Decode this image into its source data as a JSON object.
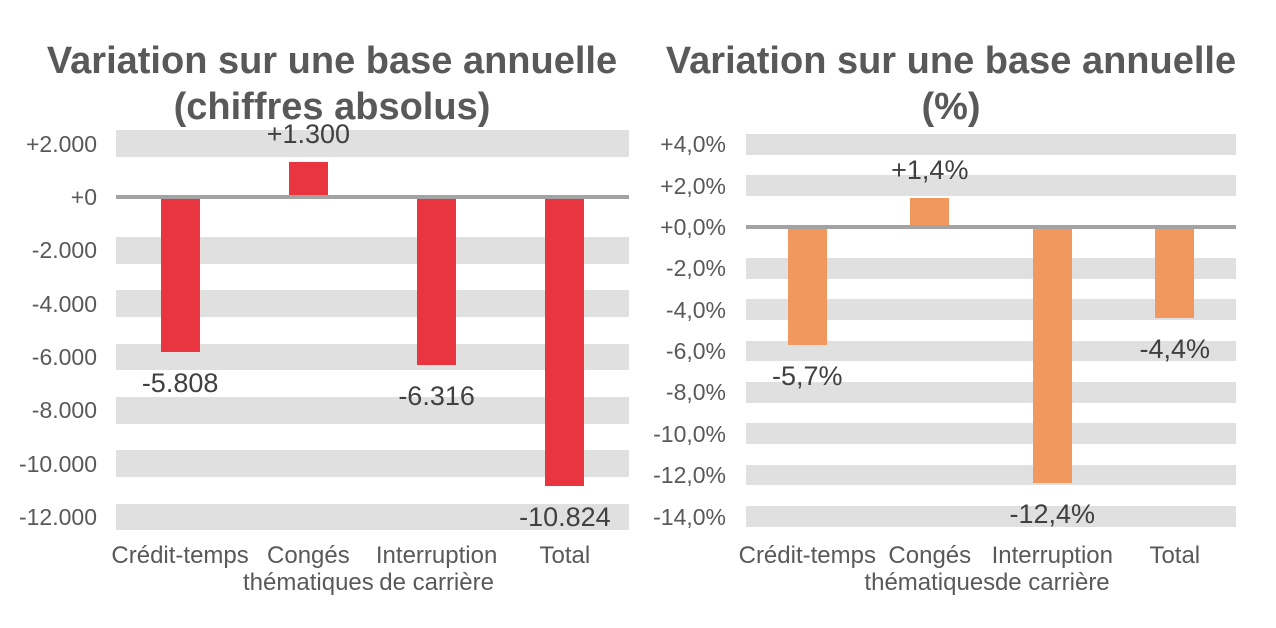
{
  "page": {
    "background_color": "#ffffff"
  },
  "chart_data": [
    {
      "type": "bar",
      "title": "Variation sur une base annuelle (chiffres absolus)",
      "title_lines": [
        "Variation sur une base annuelle",
        "(chiffres absolus)"
      ],
      "categories": [
        "Crédit-temps",
        "Congés thématiques",
        "Interruption de carrière",
        "Total"
      ],
      "category_lines": [
        [
          "Crédit-temps"
        ],
        [
          "Congés",
          "thématiques"
        ],
        [
          "Interruption",
          "de carrière"
        ],
        [
          "Total"
        ]
      ],
      "values": [
        -5808,
        1300,
        -6316,
        -10824
      ],
      "data_labels": [
        "-5.808",
        "+1.300",
        "-6.316",
        "-10.824"
      ],
      "bar_color": "#e8353f",
      "band_color": "#e0e0e0",
      "zero_line_color": "#a3a3a3",
      "text_color": "#595959",
      "data_label_color": "#404040",
      "xlabel": "",
      "ylabel": "",
      "ylim": [
        -12500,
        2500
      ],
      "y_tick_step": 2000,
      "grid": "horizontal-gray-bands",
      "legend": "none",
      "y_ticks": [
        {
          "value": 2000,
          "label": "+2.000"
        },
        {
          "value": 0,
          "label": "+0"
        },
        {
          "value": -2000,
          "label": "-2.000"
        },
        {
          "value": -4000,
          "label": "-4.000"
        },
        {
          "value": -6000,
          "label": "-6.000"
        },
        {
          "value": -8000,
          "label": "-8.000"
        },
        {
          "value": -10000,
          "label": "-10.000"
        },
        {
          "value": -12000,
          "label": "-12.000"
        }
      ]
    },
    {
      "type": "bar",
      "title": "Variation sur une base annuelle (%)",
      "title_lines": [
        "Variation sur une base annuelle",
        "(%)"
      ],
      "categories": [
        "Crédit-temps",
        "Congés thématiques",
        "Interruption de carrière",
        "Total"
      ],
      "category_lines": [
        [
          "Crédit-temps"
        ],
        [
          "Congés",
          "thématiques"
        ],
        [
          "Interruption",
          "de carrière"
        ],
        [
          "Total"
        ]
      ],
      "values": [
        -5.7,
        1.4,
        -12.4,
        -4.4
      ],
      "data_labels": [
        "-5,7%",
        "+1,4%",
        "-12,4%",
        "-4,4%"
      ],
      "bar_color": "#f0985e",
      "band_color": "#e0e0e0",
      "zero_line_color": "#a3a3a3",
      "text_color": "#595959",
      "data_label_color": "#404040",
      "xlabel": "",
      "ylabel": "",
      "ylim": [
        -14.5,
        4.5
      ],
      "y_tick_step": 2,
      "grid": "horizontal-gray-bands",
      "legend": "none",
      "y_ticks": [
        {
          "value": 4,
          "label": "+4,0%"
        },
        {
          "value": 2,
          "label": "+2,0%"
        },
        {
          "value": 0,
          "label": "+0,0%"
        },
        {
          "value": -2,
          "label": "-2,0%"
        },
        {
          "value": -4,
          "label": "-4,0%"
        },
        {
          "value": -6,
          "label": "-6,0%"
        },
        {
          "value": -8,
          "label": "-8,0%"
        },
        {
          "value": -10,
          "label": "-10,0%"
        },
        {
          "value": -12,
          "label": "-12,0%"
        },
        {
          "value": -14,
          "label": "-14,0%"
        }
      ]
    }
  ]
}
